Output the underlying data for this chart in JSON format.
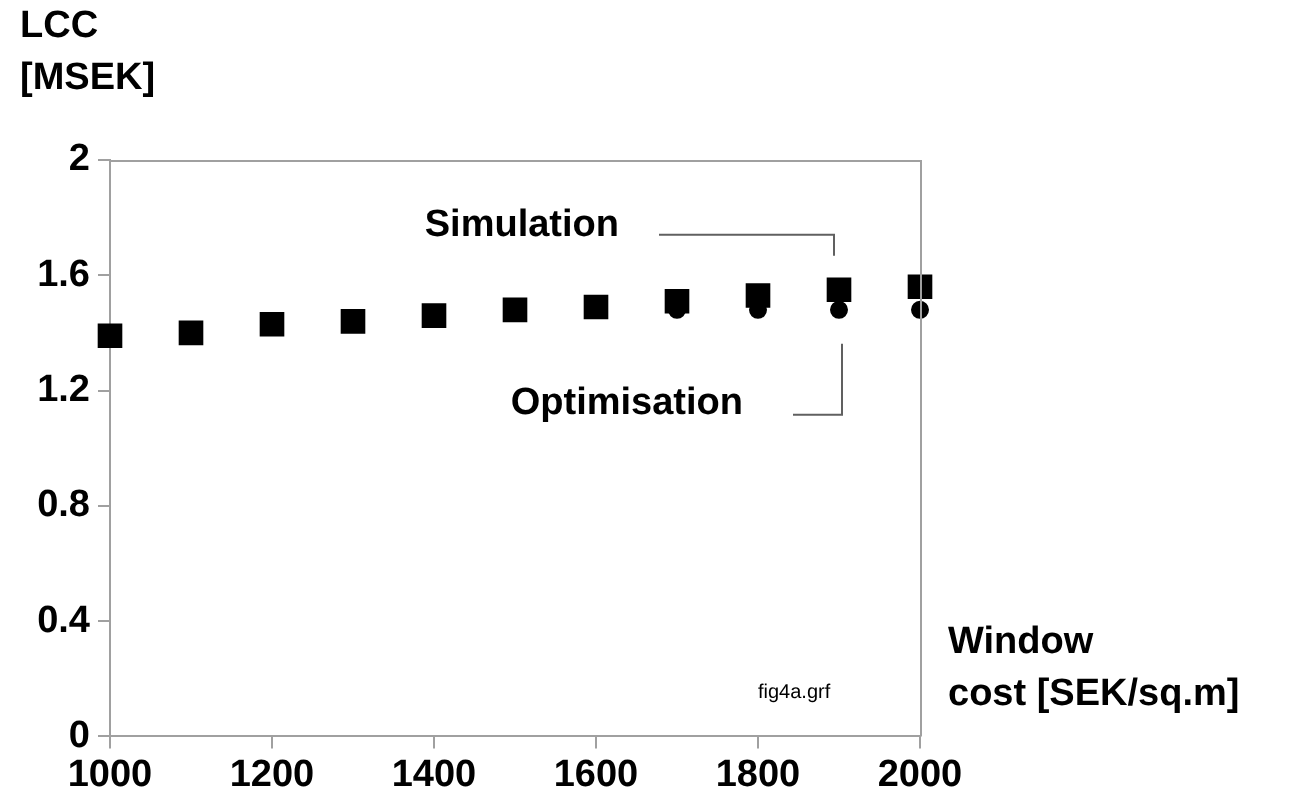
{
  "chart_data": {
    "type": "scatter",
    "xlabel": "Window\ncost [SEK/sq.m]",
    "ylabel": "LCC\n[MSEK]",
    "x": [
      1000,
      1100,
      1200,
      1300,
      1400,
      1500,
      1600,
      1700,
      1800,
      1900,
      2000
    ],
    "xlim": [
      1000,
      2000
    ],
    "xticks": [
      1000,
      1200,
      1400,
      1600,
      1800,
      2000
    ],
    "ylim": [
      0,
      2
    ],
    "yticks": [
      0,
      0.4,
      0.8,
      1.2,
      1.6,
      2
    ],
    "grid": false,
    "legend": false,
    "series": [
      {
        "name": "Simulation",
        "color": "#000000",
        "marker": "square",
        "values": [
          1.39,
          1.4,
          1.43,
          1.44,
          1.46,
          1.48,
          1.49,
          1.51,
          1.53,
          1.55,
          1.56
        ]
      },
      {
        "name": "Optimisation",
        "color": "#000000",
        "marker": "circle",
        "values": [
          null,
          null,
          null,
          null,
          null,
          null,
          null,
          1.48,
          1.48,
          1.48,
          1.48
        ]
      }
    ],
    "annotations": [
      "fig4a.grf"
    ]
  }
}
